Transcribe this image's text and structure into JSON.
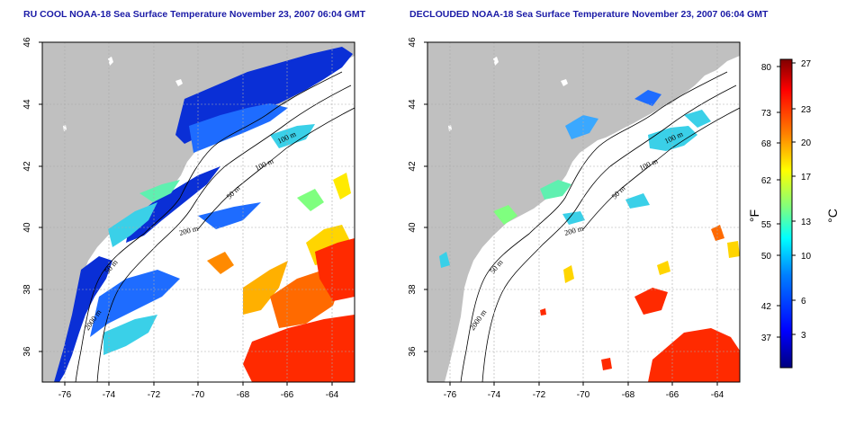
{
  "panels": [
    {
      "title": "RU COOL NOAA-18 Sea Surface Temperature November 23, 2007 06:04 GMT",
      "contour_labels": [
        "100 m",
        "100 m",
        "50 m",
        "200 m",
        "50 m",
        "2000 m"
      ]
    },
    {
      "title": "DECLOUDED NOAA-18 Sea Surface Temperature November 23, 2007 06:04 GMT",
      "contour_labels": [
        "100 m",
        "100 m",
        "50 m",
        "200 m",
        "50 m",
        "2000 m"
      ]
    }
  ],
  "axes": {
    "lon_ticks": [
      "-76",
      "-74",
      "-72",
      "-70",
      "-68",
      "-66",
      "-64"
    ],
    "lat_ticks": [
      "46",
      "44",
      "42",
      "40",
      "38",
      "36"
    ],
    "lon_range": [
      -77,
      -63
    ],
    "lat_range": [
      35,
      46
    ]
  },
  "colorbar": {
    "fahrenheit_ticks": [
      "80",
      "73",
      "68",
      "62",
      "55",
      "50",
      "42",
      "37"
    ],
    "celsius_ticks": [
      "27",
      "23",
      "20",
      "17",
      "13",
      "10",
      "6",
      "3"
    ],
    "fahrenheit_label": "°F",
    "celsius_label": "°C",
    "colors": [
      "#00007f",
      "#0000ff",
      "#007fff",
      "#00ffff",
      "#7fff7f",
      "#ffff00",
      "#ff7f00",
      "#ff0000",
      "#7f0000"
    ]
  },
  "colors": {
    "land": "#c0c0c0",
    "title": "#1a1aa6",
    "grid": "#aaaaaa"
  }
}
